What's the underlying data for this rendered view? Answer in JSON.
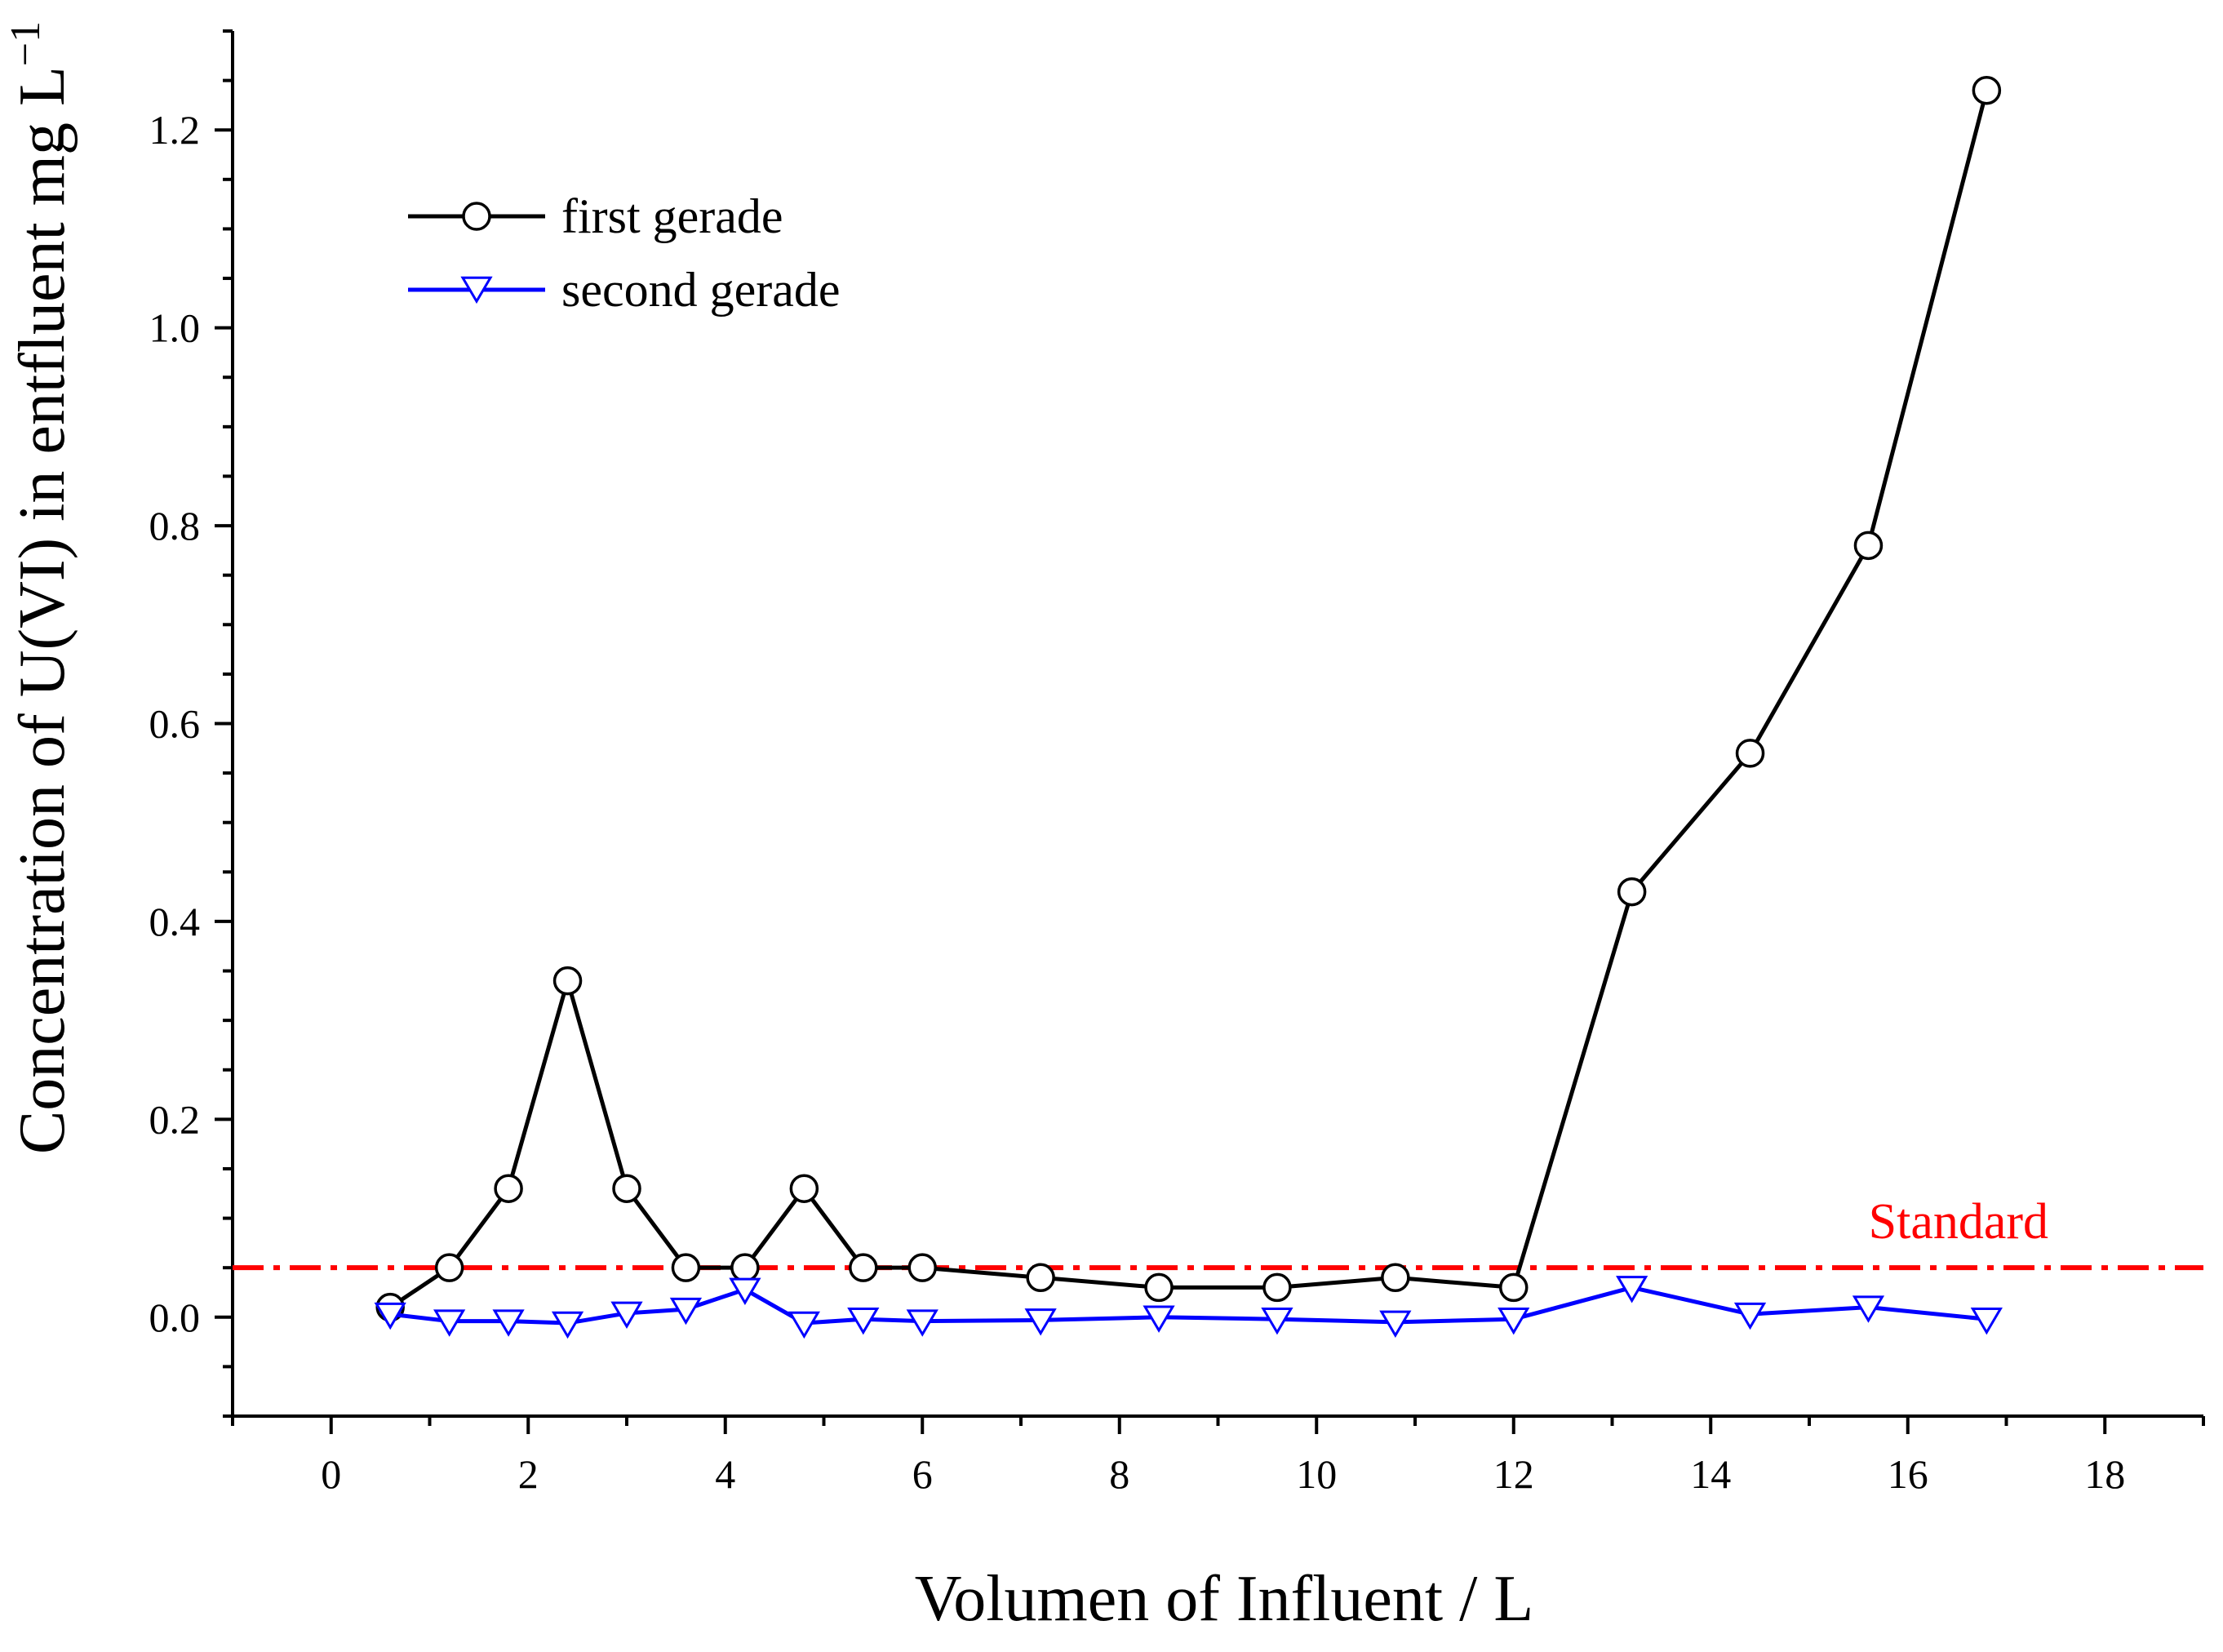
{
  "chart_data": {
    "type": "line",
    "title": "",
    "xlabel": "Volumen of Influent / L",
    "ylabel_main": "Concentration of U(VI) in entfluent  mg L",
    "ylabel_sup": "−1",
    "xlim": [
      -1,
      19
    ],
    "ylim": [
      -0.1,
      1.3
    ],
    "xticks": [
      0,
      2,
      4,
      6,
      8,
      10,
      12,
      14,
      16,
      18
    ],
    "xtick_labels": [
      "0",
      "2",
      "4",
      "6",
      "8",
      "10",
      "12",
      "14",
      "16",
      "18"
    ],
    "yticks": [
      0.0,
      0.2,
      0.4,
      0.6,
      0.8,
      1.0,
      1.2
    ],
    "ytick_labels": [
      "0.0",
      "0.2",
      "0.4",
      "0.6",
      "0.8",
      "1.0",
      "1.2"
    ],
    "legend_position": "top-left",
    "series": [
      {
        "name": "first gerade",
        "color": "#000000",
        "marker": "circle",
        "x": [
          0.6,
          1.2,
          1.8,
          2.4,
          3.0,
          3.6,
          4.2,
          4.8,
          5.4,
          6.0,
          7.2,
          8.4,
          9.6,
          10.8,
          12.0,
          13.2,
          14.4,
          15.6,
          16.8
        ],
        "y": [
          0.01,
          0.05,
          0.13,
          0.34,
          0.13,
          0.05,
          0.05,
          0.13,
          0.05,
          0.05,
          0.04,
          0.03,
          0.03,
          0.04,
          0.03,
          0.43,
          0.57,
          0.78,
          1.24
        ]
      },
      {
        "name": "second gerade",
        "color": "#0000ff",
        "marker": "triangle-down",
        "x": [
          0.6,
          1.2,
          1.8,
          2.4,
          3.0,
          3.6,
          4.2,
          4.8,
          5.4,
          6.0,
          7.2,
          8.4,
          9.6,
          10.8,
          12.0,
          13.2,
          14.4,
          15.6,
          16.8
        ],
        "y": [
          0.003,
          -0.004,
          -0.004,
          -0.006,
          0.004,
          0.008,
          0.028,
          -0.006,
          -0.002,
          -0.004,
          -0.003,
          0.0,
          -0.002,
          -0.005,
          -0.002,
          0.03,
          0.003,
          0.01,
          -0.002
        ]
      }
    ],
    "reference_line": {
      "name": "Standard",
      "y": 0.05,
      "color": "#ff0000",
      "style": "dash-dot"
    }
  }
}
